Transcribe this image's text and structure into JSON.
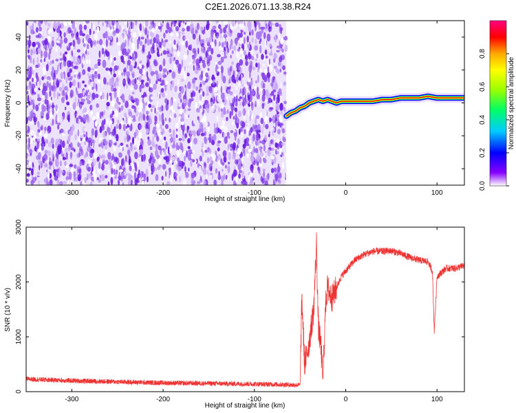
{
  "title": "C2E1.2026.071.13.38.R24",
  "colors": {
    "trace": "#ee3333",
    "noise_dark": "#6a1de0",
    "noise_light": "#c9a8f5",
    "axis": "#000000"
  },
  "chart_data": [
    {
      "type": "heatmap",
      "xlabel": "Height of straight line (km)",
      "ylabel": "Frequency (Hz)",
      "xlim": [
        -350,
        130
      ],
      "ylim": [
        -50,
        50
      ],
      "x_ticks": [
        -300,
        -200,
        -100,
        0,
        100
      ],
      "y_ticks": [
        -40,
        -20,
        0,
        20,
        40
      ],
      "colorbar": {
        "label": "Normalized spectral amplitude",
        "range": [
          0.0,
          1.0
        ],
        "ticks": [
          "0.0",
          "0.2",
          "0.4",
          "0.6",
          "0.8"
        ],
        "colormap": [
          "#ffffff",
          "#8800ff",
          "#0000ff",
          "#00ccff",
          "#00ff66",
          "#99ff00",
          "#ffff00",
          "#ffaa00",
          "#ff0000",
          "#ff0080"
        ]
      },
      "noise_region": [
        -350,
        -65
      ],
      "signal_track": {
        "x": [
          -65,
          -60,
          -55,
          -50,
          -45,
          -40,
          -35,
          -30,
          -25,
          -20,
          -15,
          -10,
          -5,
          0,
          10,
          20,
          30,
          40,
          50,
          60,
          70,
          80,
          90,
          100,
          110,
          120,
          130
        ],
        "y": [
          -8,
          -6,
          -5,
          -3,
          -2,
          0,
          1,
          2,
          1,
          2,
          1,
          0,
          1,
          1,
          1,
          1,
          1,
          2,
          2,
          3,
          3,
          3,
          4,
          3,
          3,
          3,
          3
        ]
      }
    },
    {
      "type": "line",
      "xlabel": "Height of straight line (km)",
      "ylabel": "SNR (10 * v/v)",
      "xlim": [
        -350,
        130
      ],
      "ylim": [
        0,
        3000
      ],
      "x_ticks": [
        -300,
        -200,
        -100,
        0,
        100
      ],
      "y_ticks": [
        0,
        1000,
        2000,
        3000
      ],
      "series": [
        {
          "x": [
            -350,
            -300,
            -250,
            -200,
            -150,
            -100,
            -70,
            -50,
            -48,
            -45,
            -40,
            -35,
            -32,
            -30,
            -27,
            -25,
            -22,
            -20,
            -15,
            -10,
            -5,
            0,
            10,
            20,
            30,
            40,
            50,
            60,
            70,
            80,
            90,
            95,
            97,
            100,
            110,
            120,
            130
          ],
          "y": [
            230,
            200,
            180,
            160,
            150,
            140,
            130,
            120,
            1700,
            500,
            900,
            1500,
            2700,
            1200,
            800,
            200,
            1600,
            1900,
            1700,
            1900,
            2100,
            2200,
            2400,
            2500,
            2560,
            2560,
            2570,
            2520,
            2450,
            2400,
            2370,
            2200,
            1100,
            2100,
            2250,
            2250,
            2300
          ]
        }
      ]
    }
  ]
}
